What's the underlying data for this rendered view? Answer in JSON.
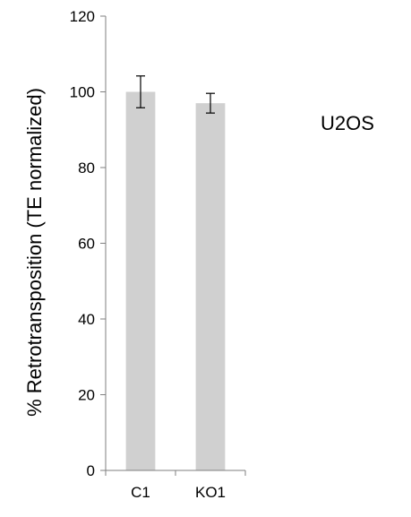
{
  "chart_data": {
    "type": "bar",
    "categories": [
      "C1",
      "KO1"
    ],
    "values": [
      100,
      97
    ],
    "error": [
      4.2,
      2.6
    ],
    "ylabel": "% Retrotransposition (TE normalized)",
    "xlabel": "",
    "ylim": [
      0,
      120
    ],
    "yticks": [
      0,
      20,
      40,
      60,
      80,
      100,
      120
    ],
    "annotation": "U2OS",
    "bar_color": "#d0d0d0",
    "axis_color": "#7f7f7f",
    "grid": false,
    "legend": false
  }
}
